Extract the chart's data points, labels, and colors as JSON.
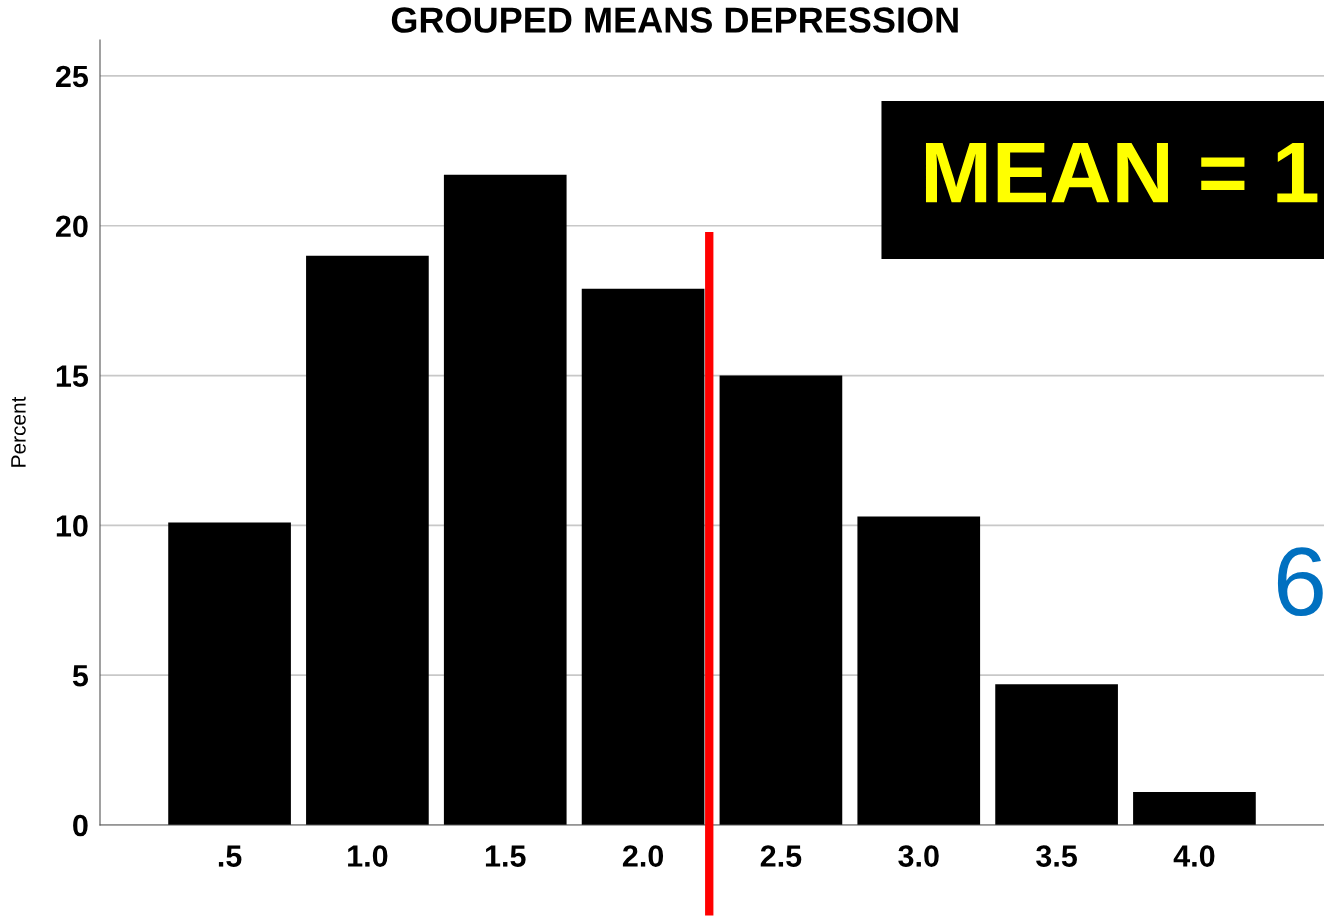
{
  "chart_data": {
    "type": "bar",
    "title": "GROUPED MEANS DEPRESSION",
    "ylabel": "Percent",
    "x": [
      0.5,
      1.0,
      1.5,
      2.0,
      2.5,
      3.0,
      3.5,
      4.0
    ],
    "values": [
      10.1,
      19.0,
      21.7,
      17.9,
      15.0,
      10.3,
      4.7,
      1.1
    ],
    "color": "#000000",
    "xlim": [
      0.03,
      4.47
    ],
    "xticks": [
      {
        "value": 0.5,
        "label": ".5"
      },
      {
        "value": 1.0,
        "label": "1.0"
      },
      {
        "value": 1.5,
        "label": "1.5"
      },
      {
        "value": 2.0,
        "label": "2.0"
      },
      {
        "value": 2.5,
        "label": "2.5"
      },
      {
        "value": 3.0,
        "label": "3.0"
      },
      {
        "value": 3.5,
        "label": "3.5"
      },
      {
        "value": 4.0,
        "label": "4.0"
      }
    ],
    "ylim": [
      0,
      26.2
    ],
    "yticks": [
      0,
      5,
      10,
      15,
      20,
      25
    ],
    "grid": "y",
    "ref_lines": [
      {
        "axis": "x",
        "value": 2.24,
        "color": "#ff0000"
      }
    ],
    "annotations": [
      "MEAN = 1",
      "6"
    ]
  }
}
